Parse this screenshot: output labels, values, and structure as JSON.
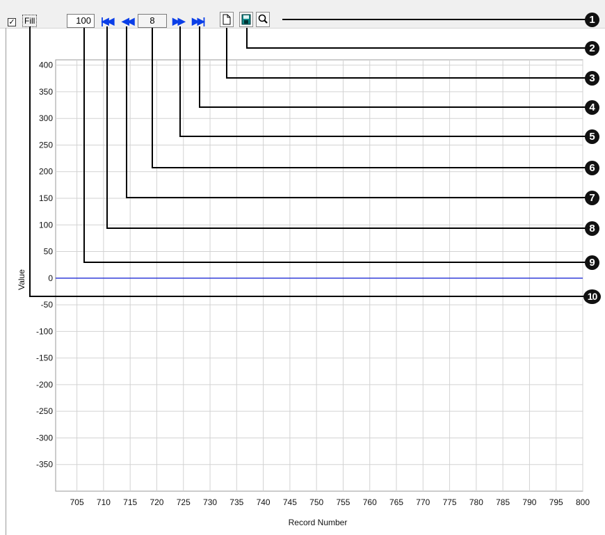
{
  "toolbar": {
    "fill_checked_glyph": "✓",
    "fill_label": "Fill",
    "period_value": "100",
    "record_value": "8",
    "nav_first_icon": "skip-to-first-icon",
    "nav_prev_icon": "step-back-icon",
    "nav_next_icon": "step-forward-icon",
    "nav_last_icon": "skip-to-last-icon",
    "new_icon": "new-document-icon",
    "save_icon": "floppy-disk-icon",
    "zoom_icon": "magnifier-icon",
    "accent_color": "#0a3ee8"
  },
  "callouts": [
    "1",
    "2",
    "3",
    "4",
    "5",
    "6",
    "7",
    "8",
    "9",
    "10"
  ],
  "chart_data": {
    "type": "line",
    "xlabel": "Record Number",
    "ylabel": "Value",
    "xlim": [
      701,
      800
    ],
    "ylim": [
      -400,
      410
    ],
    "x_ticks": [
      705,
      710,
      715,
      720,
      725,
      730,
      735,
      740,
      745,
      750,
      755,
      760,
      765,
      770,
      775,
      780,
      785,
      790,
      795,
      800
    ],
    "y_ticks": [
      400,
      350,
      300,
      250,
      200,
      150,
      100,
      50,
      0,
      -50,
      -100,
      -150,
      -200,
      -250,
      -300,
      -350
    ],
    "grid": true,
    "series": [
      {
        "color": "#1f2bd6",
        "x": [
          701,
          800
        ],
        "values": [
          0,
          0
        ]
      }
    ]
  }
}
